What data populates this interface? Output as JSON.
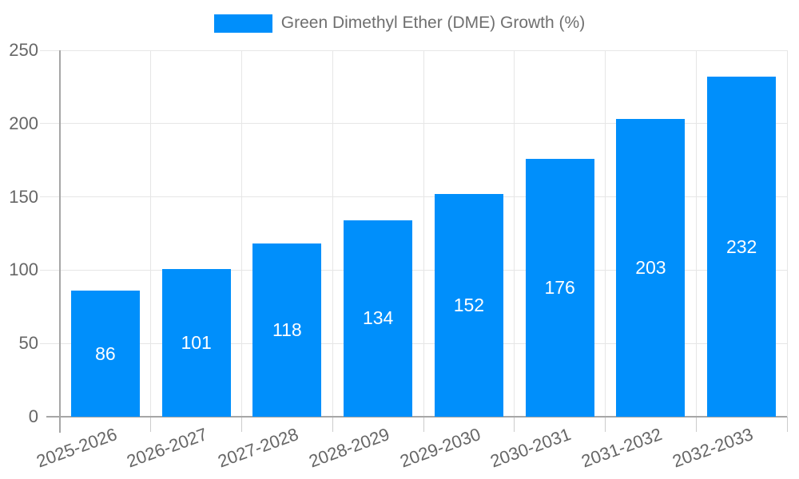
{
  "chart_data": {
    "type": "bar",
    "title": "",
    "legend": {
      "label": "Green Dimethyl Ether (DME) Growth (%)",
      "position": "top"
    },
    "categories": [
      "2025-2026",
      "2026-2027",
      "2027-2028",
      "2028-2029",
      "2029-2030",
      "2030-2031",
      "2031-2032",
      "2032-2033"
    ],
    "values": [
      86,
      101,
      118,
      134,
      152,
      176,
      203,
      232
    ],
    "xlabel": "",
    "ylabel": "",
    "ylim": [
      0,
      250
    ],
    "yticks": [
      0,
      50,
      100,
      150,
      200,
      250
    ],
    "grid": true,
    "x_label_rotation_deg": -20,
    "colors": {
      "bar": "#008FFB",
      "value_label": "#ffffff",
      "axis_text": "#666666",
      "grid_line": "#e6e6e6",
      "tick_line": "#cccccc",
      "axis_line": "#a6a6a6",
      "legend_text": "#6f6f6f",
      "background": "#ffffff"
    }
  }
}
